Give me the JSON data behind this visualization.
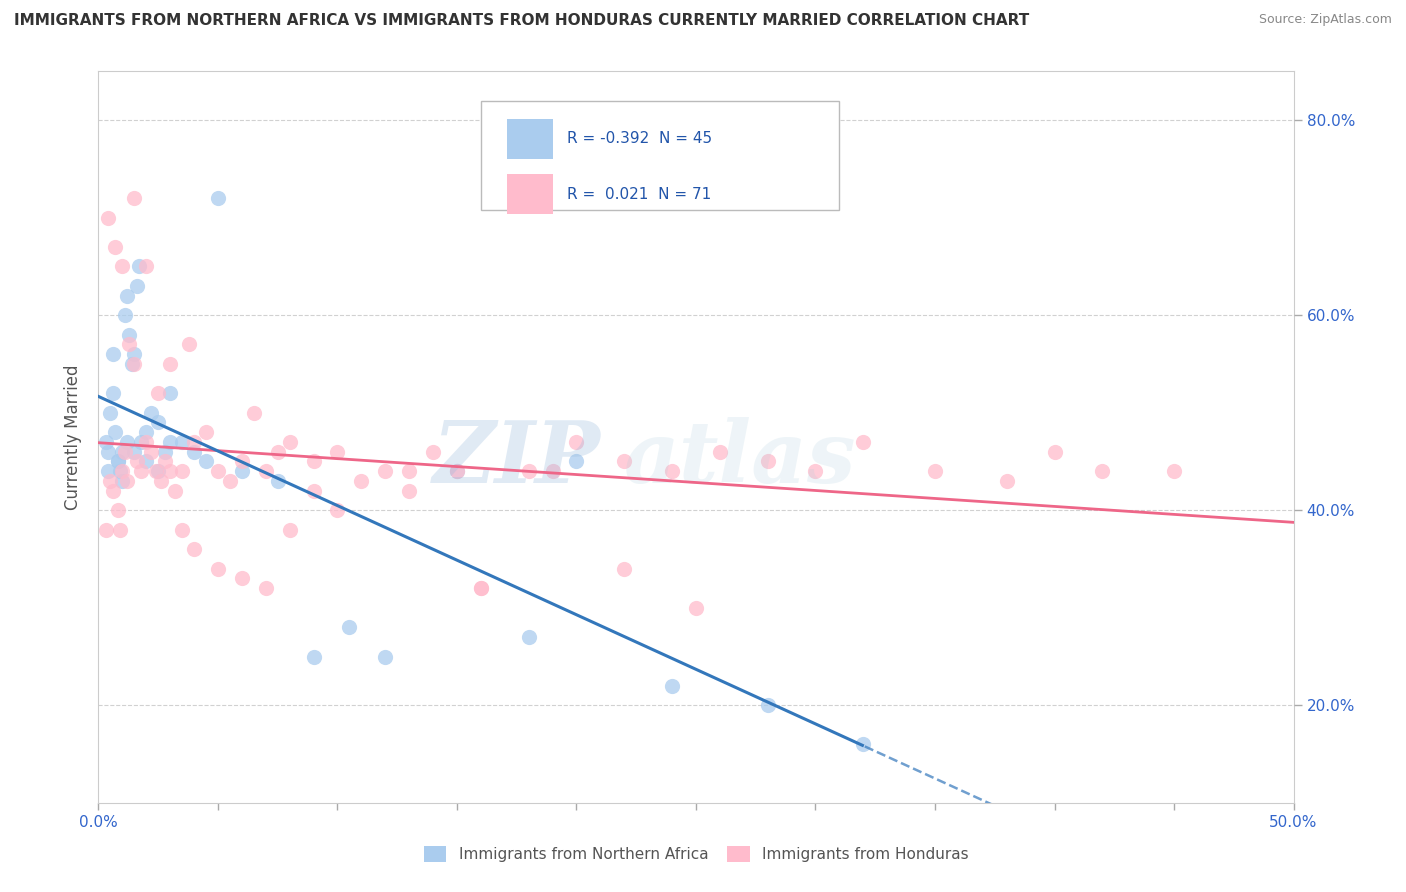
{
  "title": "IMMIGRANTS FROM NORTHERN AFRICA VS IMMIGRANTS FROM HONDURAS CURRENTLY MARRIED CORRELATION CHART",
  "source": "Source: ZipAtlas.com",
  "ylabel": "Currently Married",
  "legend_label1": "Immigrants from Northern Africa",
  "legend_label2": "Immigrants from Honduras",
  "R1": -0.392,
  "N1": 45,
  "R2": 0.021,
  "N2": 71,
  "xlim": [
    0.0,
    50.0
  ],
  "ylim": [
    10.0,
    85.0
  ],
  "color1": "#aaccee",
  "color2": "#ffbbcc",
  "line_color1": "#3377bb",
  "line_color2": "#ee6688",
  "watermark_zip_color": "#99bbcc",
  "watermark_atlas_color": "#aaccdd",
  "blue_points_x": [
    0.3,
    0.4,
    0.5,
    0.6,
    0.7,
    0.8,
    0.9,
    1.0,
    1.1,
    1.2,
    1.3,
    1.4,
    1.5,
    1.6,
    1.7,
    1.8,
    2.0,
    2.2,
    2.5,
    2.8,
    3.0,
    3.5,
    4.0,
    5.0,
    0.4,
    0.6,
    0.8,
    1.0,
    1.2,
    1.5,
    2.0,
    2.5,
    3.0,
    4.5,
    6.0,
    7.5,
    9.0,
    10.5,
    12.0,
    15.0,
    18.0,
    20.0,
    24.0,
    28.0,
    32.0
  ],
  "blue_points_y": [
    47.0,
    46.0,
    50.0,
    52.0,
    48.0,
    45.0,
    44.0,
    46.0,
    60.0,
    62.0,
    58.0,
    55.0,
    56.0,
    63.0,
    65.0,
    47.0,
    48.0,
    50.0,
    49.0,
    46.0,
    52.0,
    47.0,
    46.0,
    72.0,
    44.0,
    56.0,
    45.0,
    43.0,
    47.0,
    46.0,
    45.0,
    44.0,
    47.0,
    45.0,
    44.0,
    43.0,
    25.0,
    28.0,
    25.0,
    44.0,
    27.0,
    45.0,
    22.0,
    20.0,
    16.0
  ],
  "pink_points_x": [
    0.3,
    0.5,
    0.6,
    0.8,
    0.9,
    1.0,
    1.1,
    1.2,
    1.3,
    1.5,
    1.6,
    1.8,
    2.0,
    2.2,
    2.4,
    2.6,
    2.8,
    3.0,
    3.2,
    3.5,
    3.8,
    4.0,
    4.5,
    5.0,
    5.5,
    6.0,
    6.5,
    7.0,
    7.5,
    8.0,
    9.0,
    10.0,
    11.0,
    12.0,
    13.0,
    14.0,
    15.0,
    16.0,
    18.0,
    20.0,
    22.0,
    24.0,
    26.0,
    28.0,
    30.0,
    32.0,
    35.0,
    38.0,
    40.0,
    42.0,
    0.4,
    0.7,
    1.0,
    1.5,
    2.0,
    2.5,
    3.0,
    3.5,
    4.0,
    5.0,
    6.0,
    7.0,
    8.0,
    9.0,
    10.0,
    13.0,
    16.0,
    19.0,
    22.0,
    25.0,
    45.0
  ],
  "pink_points_y": [
    38.0,
    43.0,
    42.0,
    40.0,
    38.0,
    44.0,
    46.0,
    43.0,
    57.0,
    55.0,
    45.0,
    44.0,
    47.0,
    46.0,
    44.0,
    43.0,
    45.0,
    55.0,
    42.0,
    44.0,
    57.0,
    47.0,
    48.0,
    44.0,
    43.0,
    45.0,
    50.0,
    44.0,
    46.0,
    47.0,
    45.0,
    46.0,
    43.0,
    44.0,
    42.0,
    46.0,
    44.0,
    32.0,
    44.0,
    47.0,
    34.0,
    44.0,
    46.0,
    45.0,
    44.0,
    47.0,
    44.0,
    43.0,
    46.0,
    44.0,
    70.0,
    67.0,
    65.0,
    72.0,
    65.0,
    52.0,
    44.0,
    38.0,
    36.0,
    34.0,
    33.0,
    32.0,
    38.0,
    42.0,
    40.0,
    44.0,
    32.0,
    44.0,
    45.0,
    30.0,
    44.0
  ]
}
